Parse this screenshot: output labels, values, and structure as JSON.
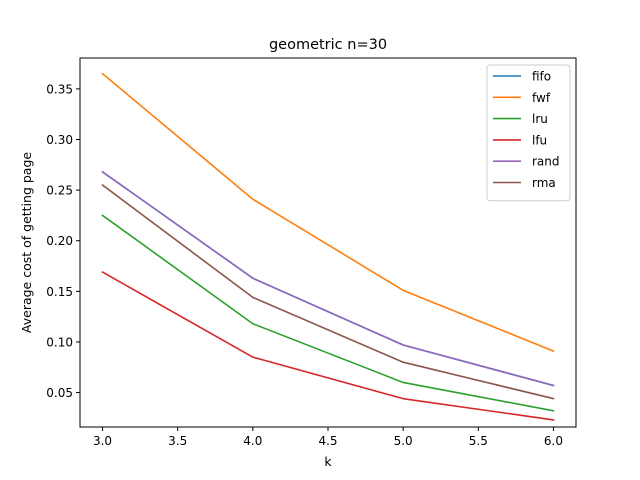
{
  "chart_data": {
    "type": "line",
    "title": "geometric n=30",
    "xlabel": "k",
    "ylabel": "Average cost of getting page",
    "xlim": [
      2.85,
      6.15
    ],
    "ylim": [
      0.016,
      0.3805
    ],
    "xticks": [
      3.0,
      3.5,
      4.0,
      4.5,
      5.0,
      5.5,
      6.0
    ],
    "yticks": [
      0.05,
      0.1,
      0.15,
      0.2,
      0.25,
      0.3,
      0.35
    ],
    "grid": false,
    "legend_position": "top-right",
    "x": [
      3,
      4,
      5,
      6
    ],
    "series": [
      {
        "name": "fifo",
        "color": "#1f77b4",
        "values": [
          0.268,
          0.163,
          0.097,
          0.057
        ]
      },
      {
        "name": "fwf",
        "color": "#ff7f0e",
        "values": [
          0.365,
          0.241,
          0.151,
          0.091
        ]
      },
      {
        "name": "lru",
        "color": "#2ca02c",
        "values": [
          0.225,
          0.118,
          0.06,
          0.032
        ]
      },
      {
        "name": "lfu",
        "color": "#d62728",
        "values": [
          0.169,
          0.085,
          0.044,
          0.023
        ]
      },
      {
        "name": "rand",
        "color": "#9467bd",
        "values": [
          0.268,
          0.163,
          0.097,
          0.057
        ]
      },
      {
        "name": "rma",
        "color": "#8c564b",
        "values": [
          0.255,
          0.144,
          0.08,
          0.044
        ]
      }
    ]
  }
}
